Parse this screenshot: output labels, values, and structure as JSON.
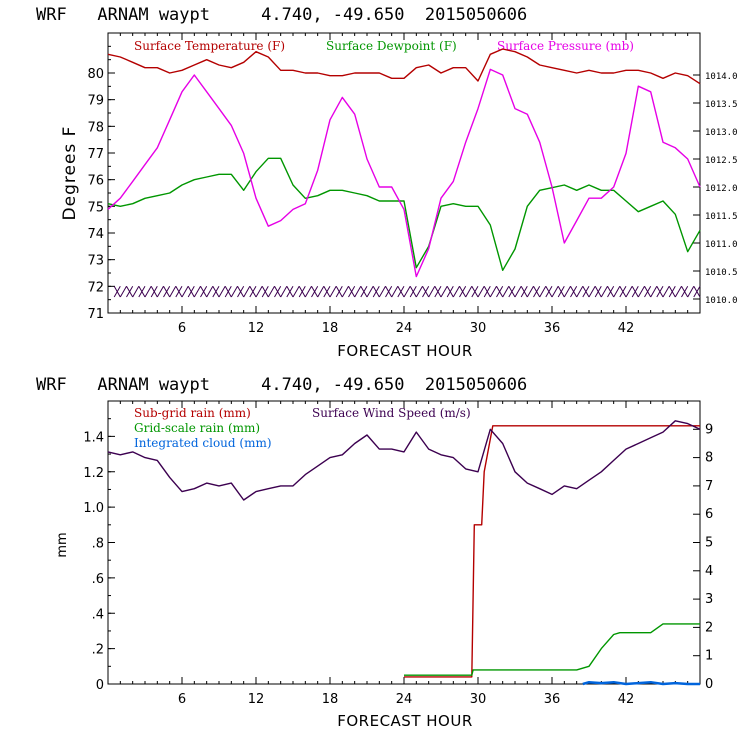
{
  "chart_data": [
    {
      "type": "line",
      "title": "WRF   ARNAM waypt     4.740, -49.650  2015050606",
      "xlabel": "FORECAST HOUR",
      "ylabel": "Degrees F",
      "xlim": [
        0,
        48
      ],
      "ylim": [
        71,
        81.5
      ],
      "y2lim": [
        1009.75,
        1014.75
      ],
      "xticks": [
        6,
        12,
        18,
        24,
        30,
        36,
        42
      ],
      "yticks": [
        71,
        72,
        73,
        74,
        75,
        76,
        77,
        78,
        79,
        80
      ],
      "y2ticks": [
        "1010.0",
        "1010.5",
        "1011.0",
        "1011.5",
        "1012.0",
        "1012.5",
        "1013.0",
        "1013.5",
        "1014.0"
      ],
      "series": [
        {
          "name": "Surface Temperature (F)",
          "axis": "left",
          "color": "#b40000",
          "x": [
            0,
            1,
            2,
            3,
            4,
            5,
            6,
            7,
            8,
            9,
            10,
            11,
            12,
            13,
            14,
            15,
            16,
            17,
            18,
            19,
            20,
            21,
            22,
            23,
            24,
            25,
            26,
            27,
            28,
            29,
            30,
            31,
            32,
            33,
            34,
            35,
            36,
            37,
            38,
            39,
            40,
            41,
            42,
            43,
            44,
            45,
            46,
            47,
            48
          ],
          "values": [
            80.7,
            80.6,
            80.4,
            80.2,
            80.2,
            80.0,
            80.1,
            80.3,
            80.5,
            80.3,
            80.2,
            80.4,
            80.8,
            80.6,
            80.1,
            80.1,
            80.0,
            80.0,
            79.9,
            79.9,
            80.0,
            80.0,
            80.0,
            79.8,
            79.8,
            80.2,
            80.3,
            80.0,
            80.2,
            80.2,
            79.7,
            80.7,
            80.9,
            80.8,
            80.6,
            80.3,
            80.2,
            80.1,
            80.0,
            80.1,
            80.0,
            80.0,
            80.1,
            80.1,
            80.0,
            79.8,
            80.0,
            79.9,
            79.6
          ]
        },
        {
          "name": "Surface Dewpoint (F)",
          "axis": "left",
          "color": "#009600",
          "x": [
            0,
            1,
            2,
            3,
            4,
            5,
            6,
            7,
            8,
            9,
            10,
            11,
            12,
            13,
            14,
            15,
            16,
            17,
            18,
            19,
            20,
            21,
            22,
            23,
            24,
            25,
            26,
            27,
            28,
            29,
            30,
            31,
            32,
            33,
            34,
            35,
            36,
            37,
            38,
            39,
            40,
            41,
            42,
            43,
            44,
            45,
            46,
            47,
            48
          ],
          "values": [
            75.1,
            75.0,
            75.1,
            75.3,
            75.4,
            75.5,
            75.8,
            76.0,
            76.1,
            76.2,
            76.2,
            75.6,
            76.3,
            76.8,
            76.8,
            75.8,
            75.3,
            75.4,
            75.6,
            75.6,
            75.5,
            75.4,
            75.2,
            75.2,
            75.2,
            72.7,
            73.5,
            75.0,
            75.1,
            75.0,
            75.0,
            74.3,
            72.6,
            73.4,
            75.0,
            75.6,
            75.7,
            75.8,
            75.6,
            75.8,
            75.6,
            75.6,
            75.2,
            74.8,
            75.0,
            75.2,
            74.7,
            73.3,
            74.1
          ]
        },
        {
          "name": "Surface Pressure (mb)",
          "axis": "right",
          "color": "#e600e6",
          "x": [
            0,
            1,
            2,
            3,
            4,
            5,
            6,
            7,
            8,
            9,
            10,
            11,
            12,
            13,
            14,
            15,
            16,
            17,
            18,
            19,
            20,
            21,
            22,
            23,
            24,
            25,
            26,
            27,
            28,
            29,
            30,
            31,
            32,
            33,
            34,
            35,
            36,
            37,
            38,
            39,
            40,
            41,
            42,
            43,
            44,
            45,
            46,
            47,
            48
          ],
          "values": [
            1011.6,
            1011.8,
            1012.1,
            1012.4,
            1012.7,
            1013.2,
            1013.7,
            1014.0,
            1013.7,
            1013.4,
            1013.1,
            1012.6,
            1011.8,
            1011.3,
            1011.4,
            1011.6,
            1011.7,
            1012.3,
            1013.2,
            1013.6,
            1013.3,
            1012.5,
            1012.0,
            1012.0,
            1011.6,
            1010.4,
            1010.9,
            1011.8,
            1012.1,
            1012.8,
            1013.4,
            1014.1,
            1014.0,
            1013.4,
            1013.3,
            1012.8,
            1012.0,
            1011.0,
            1011.4,
            1011.8,
            1011.8,
            1012.0,
            1012.6,
            1013.8,
            1013.7,
            1012.8,
            1012.7,
            1012.5,
            1012.0
          ]
        }
      ]
    },
    {
      "type": "line",
      "title": "WRF   ARNAM waypt     4.740, -49.650  2015050606",
      "xlabel": "FORECAST HOUR",
      "ylabel": "mm",
      "xlim": [
        0,
        48
      ],
      "ylim": [
        0,
        1.6
      ],
      "y2lim": [
        0,
        10
      ],
      "xticks": [
        6,
        12,
        18,
        24,
        30,
        36,
        42
      ],
      "yticks": [
        "0",
        ".2",
        ".4",
        ".6",
        ".8",
        "1.0",
        "1.2",
        "1.4"
      ],
      "y2ticks": [
        "0",
        "1",
        "2",
        "3",
        "4",
        "5",
        "6",
        "7",
        "8",
        "9"
      ],
      "series": [
        {
          "name": "Sub-grid rain (mm)",
          "axis": "left",
          "color": "#b40000",
          "x": [
            24.0,
            29.5,
            29.7,
            30.3,
            30.5,
            31.2,
            31.5,
            48.0
          ],
          "values": [
            0.04,
            0.04,
            0.9,
            0.9,
            1.2,
            1.46,
            1.46,
            1.46
          ]
        },
        {
          "name": "Grid-scale rain (mm)",
          "axis": "left",
          "color": "#009600",
          "x": [
            24.0,
            29.5,
            29.6,
            38.0,
            39.0,
            40.0,
            41.0,
            41.5,
            42.0,
            43.0,
            44.0,
            45.0,
            48.0
          ],
          "values": [
            0.05,
            0.05,
            0.08,
            0.08,
            0.1,
            0.2,
            0.28,
            0.29,
            0.29,
            0.29,
            0.29,
            0.34,
            0.34
          ]
        },
        {
          "name": "Integrated cloud (mm)",
          "axis": "left",
          "color": "#0064dc",
          "x": [
            38.5,
            39.0,
            40.0,
            41.0,
            42.0,
            43.0,
            44.0,
            45.0,
            46.0,
            47.0,
            48.0
          ],
          "values": [
            0.0,
            0.01,
            0.005,
            0.01,
            0.0,
            0.005,
            0.01,
            0.0,
            0.005,
            0.0,
            0.0
          ]
        },
        {
          "name": "Surface Wind Speed (m/s)",
          "axis": "right",
          "color": "#3c0050",
          "x": [
            0,
            1,
            2,
            3,
            4,
            5,
            6,
            7,
            8,
            9,
            10,
            11,
            12,
            13,
            14,
            15,
            16,
            17,
            18,
            19,
            20,
            21,
            22,
            23,
            24,
            25,
            26,
            27,
            28,
            29,
            30,
            31,
            32,
            33,
            34,
            35,
            36,
            37,
            38,
            39,
            40,
            41,
            42,
            43,
            44,
            45,
            46,
            47,
            48
          ],
          "values": [
            8.2,
            8.1,
            8.2,
            8.0,
            7.9,
            7.3,
            6.8,
            6.9,
            7.1,
            7.0,
            7.1,
            6.5,
            6.8,
            6.9,
            7.0,
            7.0,
            7.4,
            7.7,
            8.0,
            8.1,
            8.5,
            8.8,
            8.3,
            8.3,
            8.2,
            8.9,
            8.3,
            8.1,
            8.0,
            7.6,
            7.5,
            9.0,
            8.5,
            7.5,
            7.1,
            6.9,
            6.7,
            7.0,
            6.9,
            7.2,
            7.5,
            7.9,
            8.3,
            8.5,
            8.7,
            8.9,
            9.3,
            9.2,
            9.0
          ]
        }
      ]
    }
  ]
}
